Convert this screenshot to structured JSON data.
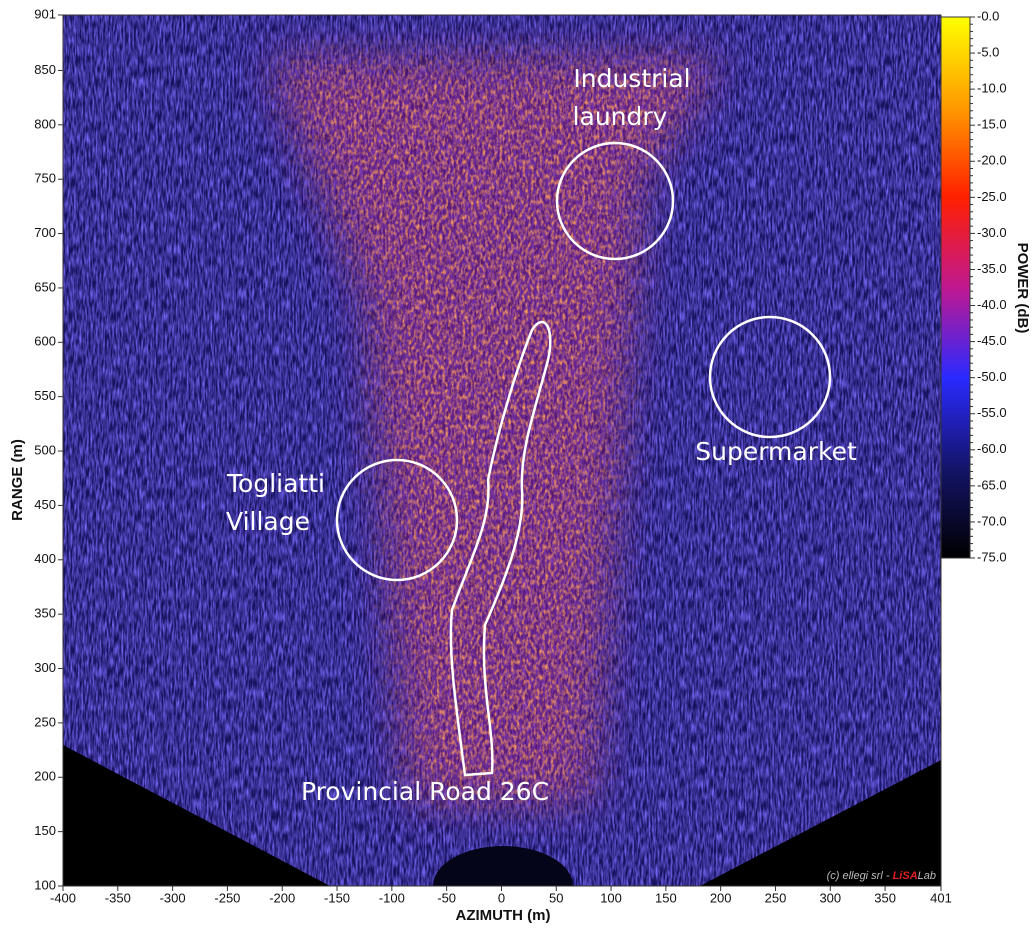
{
  "chart_data": {
    "type": "heatmap",
    "xlabel": "AZIMUTH (m)",
    "ylabel": "RANGE (m)",
    "xlim": [
      -400,
      401
    ],
    "ylim": [
      100,
      901
    ],
    "xticks": [
      -400,
      -350,
      -300,
      -250,
      -200,
      -150,
      -100,
      -50,
      0,
      50,
      100,
      150,
      200,
      250,
      300,
      350,
      401
    ],
    "yticks": [
      100,
      150,
      200,
      250,
      300,
      350,
      400,
      450,
      500,
      550,
      600,
      650,
      700,
      750,
      800,
      850,
      901
    ],
    "colorbar": {
      "label": "POWER (dB)",
      "clim": [
        -75,
        0
      ],
      "colormap": [
        "#ffff00",
        "#ff9a00",
        "#ff2000",
        "#c01890",
        "#2a2aff",
        "#14146a",
        "#000000"
      ],
      "ticks": [
        {
          "value": 0,
          "label": "-0.0"
        },
        -5.0,
        -10.0,
        -15.0,
        -20.0,
        -25.0,
        -30.0,
        -35.0,
        -40.0,
        -45.0,
        -50.0,
        -55.0,
        -60.0,
        -65.0,
        -70.0,
        -75.0
      ]
    },
    "annotations": [
      {
        "lines": [
          "Industrial",
          "laundry"
        ]
      },
      {
        "lines": [
          "Supermarket"
        ]
      },
      {
        "lines": [
          "Togliatti",
          "Village"
        ]
      },
      {
        "lines": [
          "Provincial Road 26C"
        ]
      }
    ],
    "credit": [
      "(c) ellegi srl - ",
      "LiSA",
      "Lab"
    ]
  }
}
